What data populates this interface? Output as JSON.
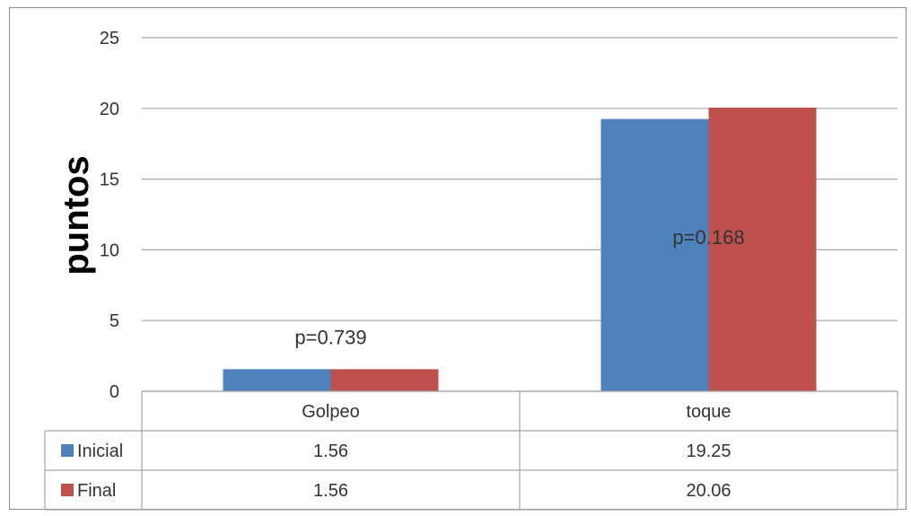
{
  "chart_data": {
    "type": "bar",
    "categories": [
      "Golpeo",
      "toque"
    ],
    "series": [
      {
        "name": "Inicial",
        "color": "#4f81bd",
        "values": [
          1.56,
          19.25
        ],
        "labels": [
          "1.56",
          "19.25"
        ]
      },
      {
        "name": "Final",
        "color": "#c0504d",
        "values": [
          1.56,
          20.06
        ],
        "labels": [
          "1.56",
          "20.06"
        ]
      }
    ],
    "ylabel": "puntos",
    "ylim": [
      0,
      25
    ],
    "yticks": [
      0,
      5,
      10,
      15,
      20,
      25
    ],
    "grid": true,
    "data_table": true,
    "annotations": [
      {
        "category": "Golpeo",
        "text": "p=0.739"
      },
      {
        "category": "toque",
        "text": "p=0.168"
      }
    ]
  }
}
